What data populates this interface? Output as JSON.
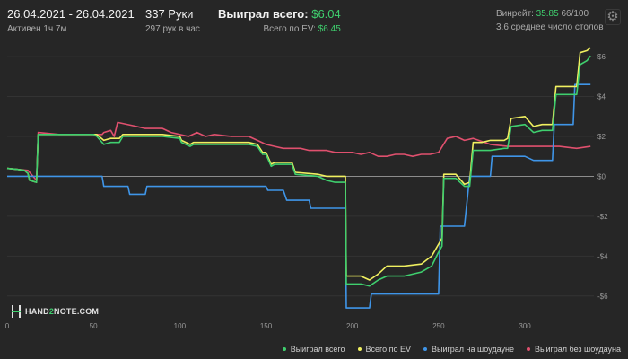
{
  "header": {
    "date_range": "26.04.2021 - 26.04.2021",
    "active_time": "Активен 1ч 7м",
    "hands": "337 Руки",
    "hands_per_hour": "297 рук в час",
    "won_label": "Выиграл всего:",
    "won_value": "$6.04",
    "ev_label": "Всего по EV:",
    "ev_value": "$6.45",
    "winrate_label": "Винрейт:",
    "winrate_value": "35.85",
    "winrate_hands": "66/100",
    "avg_tables": "3.6 среднее число столов"
  },
  "logo": {
    "text_a": "HAND",
    "text_b": "2",
    "text_c": "NOTE.COM"
  },
  "icons": {
    "settings": "gear-icon"
  },
  "colors": {
    "background": "#262626",
    "won": "#3fcf6e",
    "ev": "#f0f060",
    "showdown": "#3f95e8",
    "non_showdown": "#e0506e",
    "zero_line": "#8c8c8c",
    "grid": "#333333"
  },
  "chart_data": {
    "type": "line",
    "xlim": [
      0,
      340
    ],
    "ylim": [
      -7,
      6.5
    ],
    "x_ticks": [
      0,
      50,
      100,
      150,
      200,
      250,
      300
    ],
    "y_ticks": [
      {
        "value": 6,
        "label": "$6"
      },
      {
        "value": 4,
        "label": "$4"
      },
      {
        "value": 2,
        "label": "$2"
      },
      {
        "value": 0,
        "label": "$0"
      },
      {
        "value": -2,
        "label": "-$2"
      },
      {
        "value": -4,
        "label": "-$4"
      },
      {
        "value": -6,
        "label": "-$6"
      }
    ],
    "legend_position": "bottom-right",
    "series": [
      {
        "name": "Выиграл всего",
        "color": "#3fcf6e",
        "points": [
          [
            0,
            0.4
          ],
          [
            6,
            0.35
          ],
          [
            10,
            0.3
          ],
          [
            12,
            0.15
          ],
          [
            13,
            -0.2
          ],
          [
            17,
            -0.3
          ],
          [
            18,
            2.1
          ],
          [
            30,
            2.1
          ],
          [
            50,
            2.1
          ],
          [
            52,
            2.0
          ],
          [
            56,
            1.6
          ],
          [
            60,
            1.7
          ],
          [
            65,
            1.7
          ],
          [
            67,
            2.0
          ],
          [
            75,
            2.0
          ],
          [
            80,
            2.0
          ],
          [
            90,
            2.0
          ],
          [
            100,
            1.9
          ],
          [
            101,
            1.7
          ],
          [
            106,
            1.5
          ],
          [
            108,
            1.6
          ],
          [
            115,
            1.6
          ],
          [
            140,
            1.6
          ],
          [
            145,
            1.5
          ],
          [
            148,
            1.1
          ],
          [
            150,
            1.1
          ],
          [
            153,
            0.5
          ],
          [
            155,
            0.6
          ],
          [
            165,
            0.6
          ],
          [
            167,
            0.1
          ],
          [
            180,
            0.0
          ],
          [
            185,
            -0.2
          ],
          [
            190,
            -0.3
          ],
          [
            196,
            -0.3
          ],
          [
            196.5,
            -5.4
          ],
          [
            205,
            -5.4
          ],
          [
            210,
            -5.5
          ],
          [
            215,
            -5.2
          ],
          [
            220,
            -5.0
          ],
          [
            230,
            -5.0
          ],
          [
            240,
            -4.8
          ],
          [
            246,
            -4.5
          ],
          [
            250,
            -3.8
          ],
          [
            252,
            -3.5
          ],
          [
            253,
            -0.1
          ],
          [
            260,
            -0.1
          ],
          [
            265,
            -0.5
          ],
          [
            268,
            -0.5
          ],
          [
            270,
            1.3
          ],
          [
            275,
            1.3
          ],
          [
            280,
            1.3
          ],
          [
            288,
            1.4
          ],
          [
            290,
            1.4
          ],
          [
            292,
            2.5
          ],
          [
            300,
            2.6
          ],
          [
            305,
            2.2
          ],
          [
            310,
            2.3
          ],
          [
            316,
            2.3
          ],
          [
            318,
            4.1
          ],
          [
            330,
            4.1
          ],
          [
            332,
            5.6
          ],
          [
            336,
            5.8
          ],
          [
            338,
            6.04
          ]
        ]
      },
      {
        "name": "Всего по EV",
        "color": "#f0f060",
        "points": [
          [
            0,
            0.4
          ],
          [
            6,
            0.35
          ],
          [
            10,
            0.3
          ],
          [
            12,
            0.15
          ],
          [
            13,
            -0.2
          ],
          [
            17,
            -0.3
          ],
          [
            18,
            2.1
          ],
          [
            30,
            2.1
          ],
          [
            50,
            2.1
          ],
          [
            52,
            2.1
          ],
          [
            56,
            1.8
          ],
          [
            60,
            1.9
          ],
          [
            65,
            1.9
          ],
          [
            67,
            2.1
          ],
          [
            75,
            2.1
          ],
          [
            90,
            2.1
          ],
          [
            100,
            2.0
          ],
          [
            101,
            1.8
          ],
          [
            106,
            1.6
          ],
          [
            108,
            1.7
          ],
          [
            115,
            1.7
          ],
          [
            140,
            1.7
          ],
          [
            145,
            1.6
          ],
          [
            148,
            1.2
          ],
          [
            150,
            1.2
          ],
          [
            153,
            0.6
          ],
          [
            155,
            0.7
          ],
          [
            165,
            0.7
          ],
          [
            167,
            0.2
          ],
          [
            180,
            0.1
          ],
          [
            185,
            0.0
          ],
          [
            190,
            0.0
          ],
          [
            196,
            0.0
          ],
          [
            196.5,
            -5.0
          ],
          [
            205,
            -5.0
          ],
          [
            210,
            -5.2
          ],
          [
            215,
            -4.9
          ],
          [
            220,
            -4.5
          ],
          [
            230,
            -4.5
          ],
          [
            240,
            -4.4
          ],
          [
            246,
            -4.0
          ],
          [
            250,
            -3.4
          ],
          [
            252,
            -3.1
          ],
          [
            253,
            0.1
          ],
          [
            260,
            0.1
          ],
          [
            265,
            -0.4
          ],
          [
            268,
            -0.3
          ],
          [
            270,
            1.7
          ],
          [
            275,
            1.7
          ],
          [
            280,
            1.8
          ],
          [
            288,
            1.8
          ],
          [
            290,
            1.9
          ],
          [
            292,
            2.9
          ],
          [
            300,
            3.0
          ],
          [
            305,
            2.5
          ],
          [
            310,
            2.6
          ],
          [
            316,
            2.6
          ],
          [
            318,
            4.5
          ],
          [
            330,
            4.5
          ],
          [
            332,
            6.2
          ],
          [
            336,
            6.3
          ],
          [
            338,
            6.45
          ]
        ]
      },
      {
        "name": "Выиграл на шоудауне",
        "color": "#3f95e8",
        "points": [
          [
            0,
            0.0
          ],
          [
            15,
            0.0
          ],
          [
            55,
            0.0
          ],
          [
            56,
            -0.5
          ],
          [
            70,
            -0.5
          ],
          [
            71,
            -0.9
          ],
          [
            80,
            -0.9
          ],
          [
            81,
            -0.5
          ],
          [
            140,
            -0.5
          ],
          [
            150,
            -0.5
          ],
          [
            151,
            -0.7
          ],
          [
            160,
            -0.7
          ],
          [
            162,
            -1.2
          ],
          [
            175,
            -1.2
          ],
          [
            176,
            -1.6
          ],
          [
            196,
            -1.6
          ],
          [
            196.5,
            -6.6
          ],
          [
            210,
            -6.6
          ],
          [
            211,
            -5.9
          ],
          [
            230,
            -5.9
          ],
          [
            240,
            -5.9
          ],
          [
            250,
            -5.9
          ],
          [
            251,
            -2.5
          ],
          [
            260,
            -2.5
          ],
          [
            265,
            -2.5
          ],
          [
            268,
            0.0
          ],
          [
            280,
            0.0
          ],
          [
            281,
            1.0
          ],
          [
            300,
            1.0
          ],
          [
            305,
            0.8
          ],
          [
            316,
            0.8
          ],
          [
            317,
            2.6
          ],
          [
            328,
            2.6
          ],
          [
            329,
            4.6
          ],
          [
            338,
            4.6
          ]
        ]
      },
      {
        "name": "Выиграл без шоудауна",
        "color": "#e0506e",
        "points": [
          [
            0,
            0.4
          ],
          [
            12,
            0.3
          ],
          [
            17,
            -0.2
          ],
          [
            18,
            2.2
          ],
          [
            30,
            2.1
          ],
          [
            45,
            2.1
          ],
          [
            50,
            2.1
          ],
          [
            55,
            2.1
          ],
          [
            56,
            2.2
          ],
          [
            60,
            2.3
          ],
          [
            62,
            2.0
          ],
          [
            64,
            2.7
          ],
          [
            75,
            2.5
          ],
          [
            80,
            2.4
          ],
          [
            90,
            2.4
          ],
          [
            95,
            2.2
          ],
          [
            100,
            2.1
          ],
          [
            105,
            2.0
          ],
          [
            110,
            2.2
          ],
          [
            115,
            2.0
          ],
          [
            120,
            2.1
          ],
          [
            130,
            2.0
          ],
          [
            140,
            2.0
          ],
          [
            145,
            1.8
          ],
          [
            150,
            1.6
          ],
          [
            155,
            1.5
          ],
          [
            160,
            1.4
          ],
          [
            165,
            1.4
          ],
          [
            170,
            1.4
          ],
          [
            175,
            1.3
          ],
          [
            180,
            1.3
          ],
          [
            185,
            1.3
          ],
          [
            190,
            1.2
          ],
          [
            196,
            1.2
          ],
          [
            200,
            1.2
          ],
          [
            205,
            1.1
          ],
          [
            210,
            1.2
          ],
          [
            215,
            1.0
          ],
          [
            220,
            1.0
          ],
          [
            225,
            1.1
          ],
          [
            230,
            1.1
          ],
          [
            235,
            1.0
          ],
          [
            240,
            1.1
          ],
          [
            245,
            1.1
          ],
          [
            250,
            1.2
          ],
          [
            255,
            1.9
          ],
          [
            260,
            2.0
          ],
          [
            265,
            1.8
          ],
          [
            270,
            1.9
          ],
          [
            280,
            1.6
          ],
          [
            290,
            1.5
          ],
          [
            300,
            1.5
          ],
          [
            310,
            1.5
          ],
          [
            320,
            1.5
          ],
          [
            330,
            1.4
          ],
          [
            338,
            1.5
          ]
        ]
      }
    ]
  }
}
